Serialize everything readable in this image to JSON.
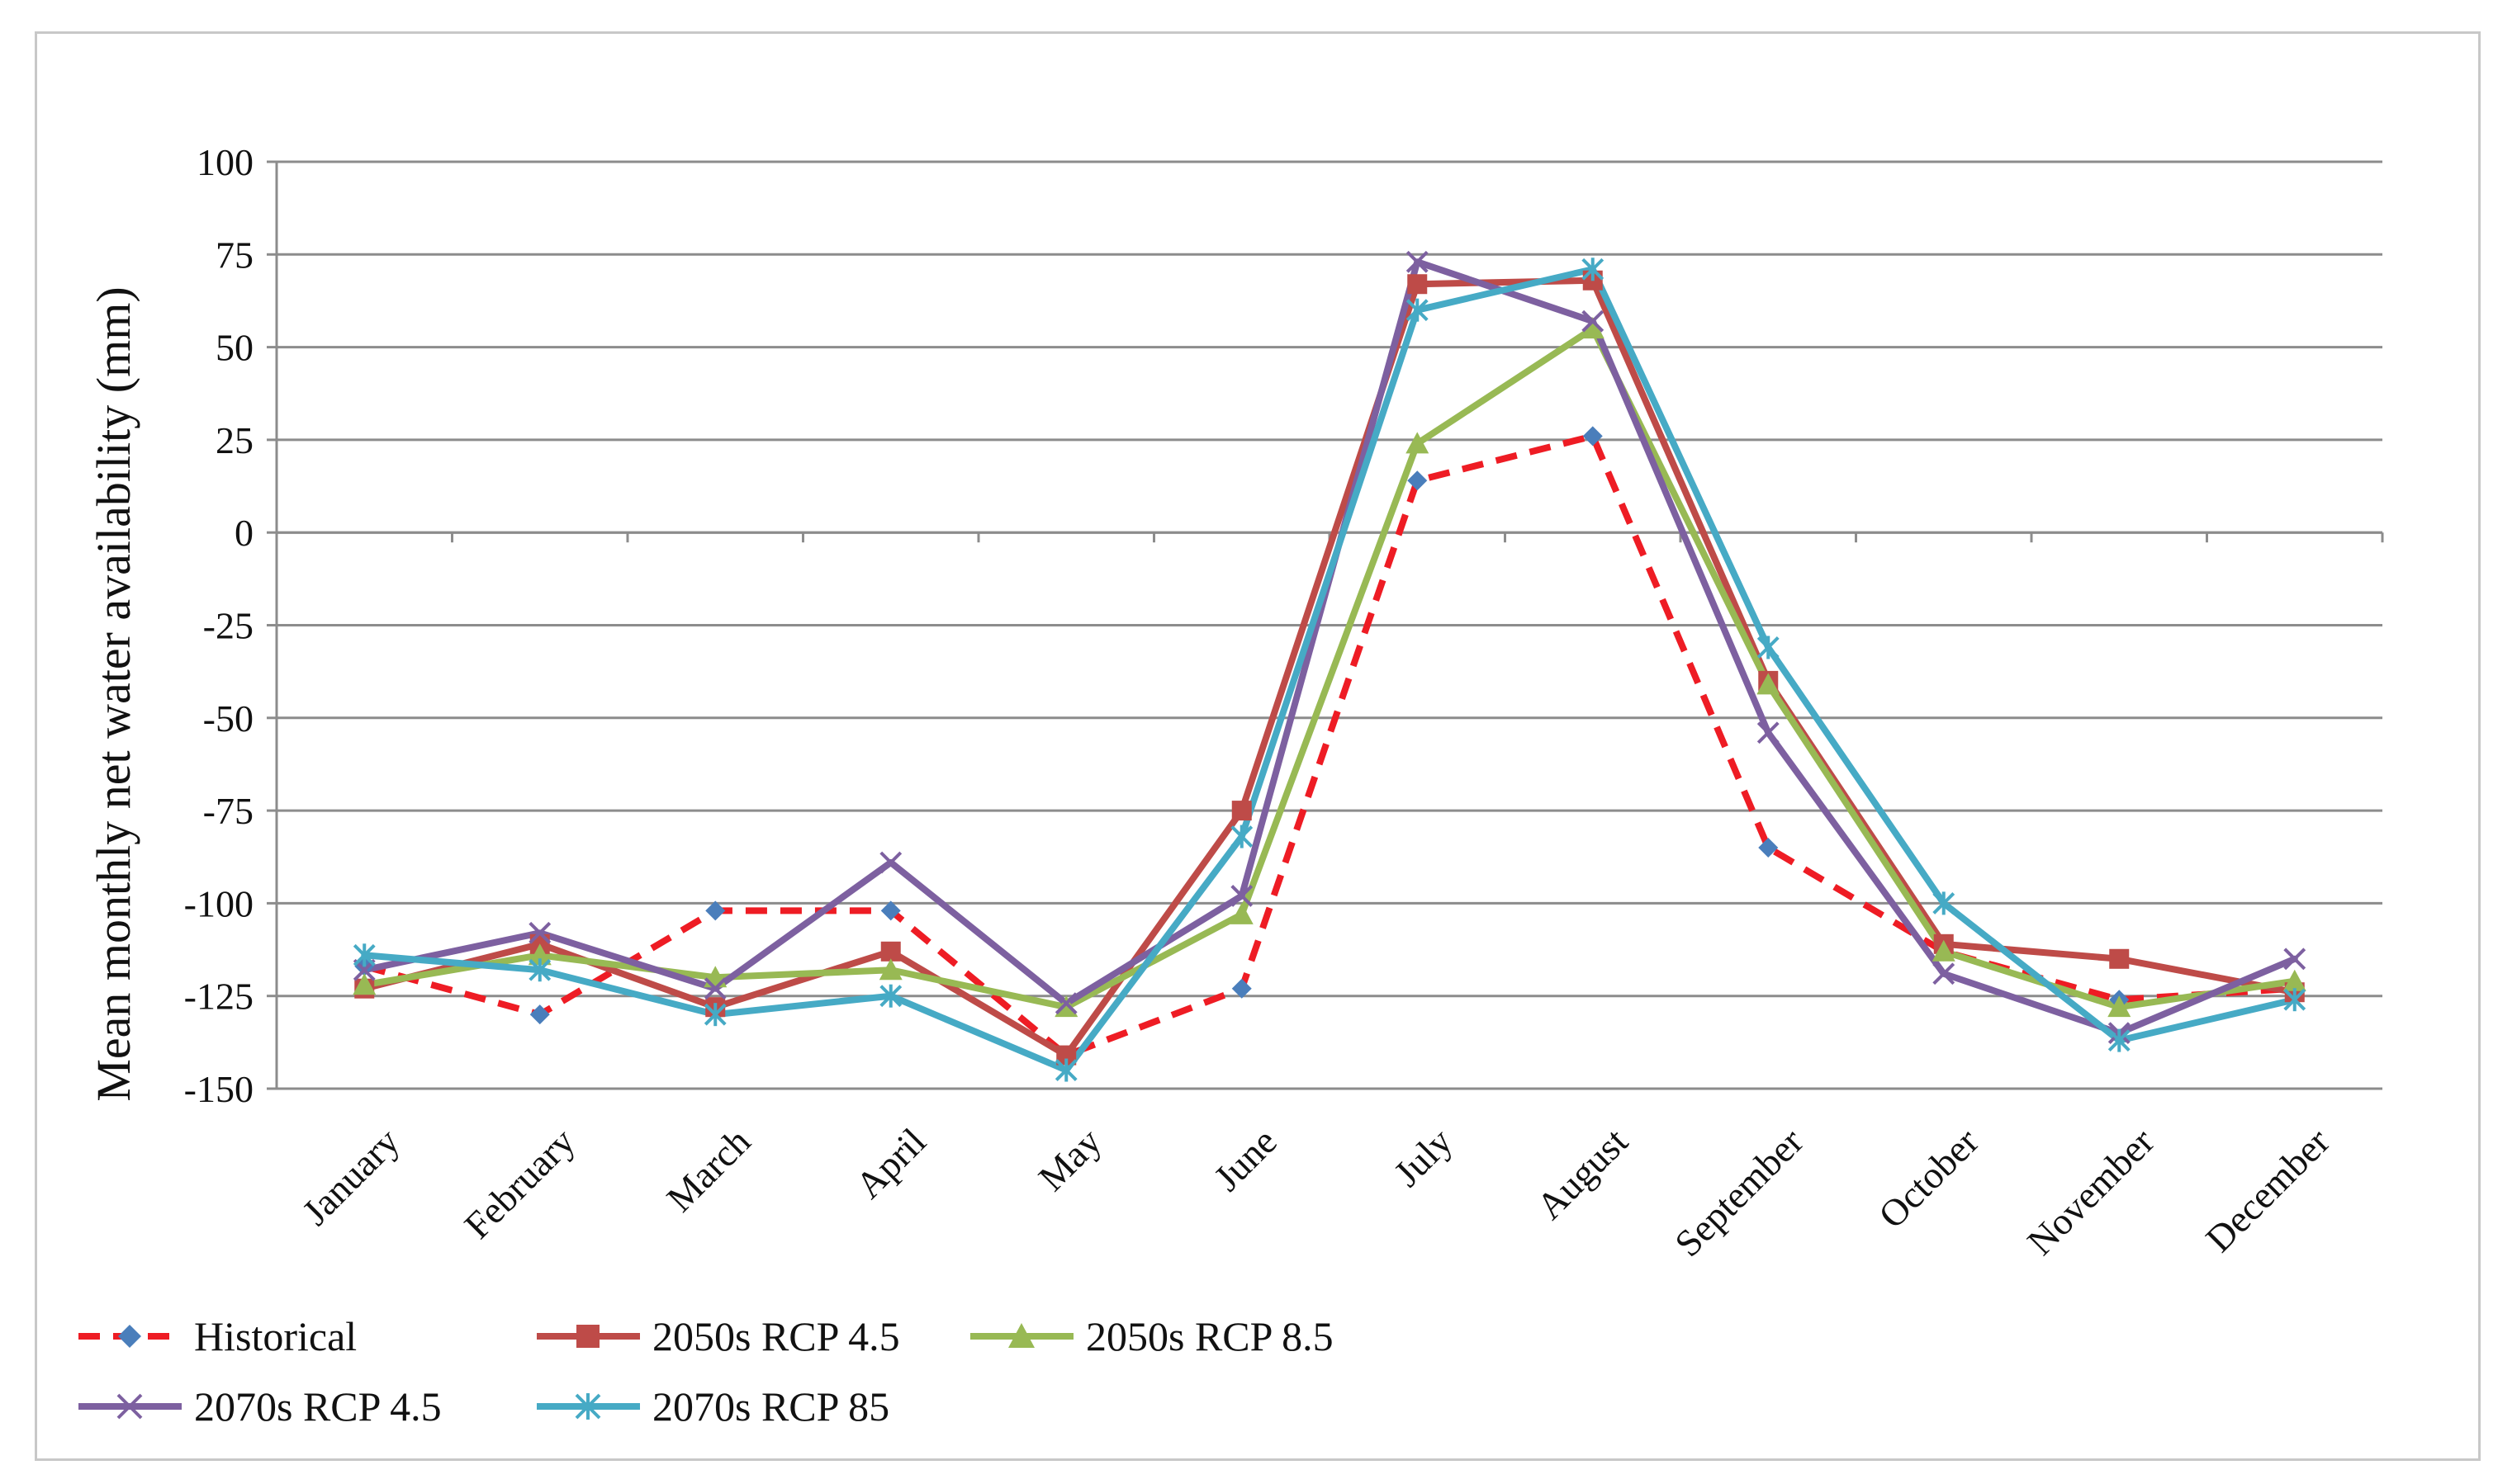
{
  "chart_data": {
    "type": "line",
    "title": "",
    "xlabel": "",
    "ylabel": "Mean monthly net water availability  (mm)",
    "ylim": [
      -150,
      100
    ],
    "yticks": [
      100,
      75,
      50,
      25,
      0,
      -25,
      -50,
      -75,
      -100,
      -125,
      -150
    ],
    "ytick_labels": [
      "100",
      "75",
      "50",
      "25",
      "0",
      "-25",
      "-50",
      "-75",
      "-100",
      "-125",
      "-150"
    ],
    "grid": true,
    "legend_position": "bottom",
    "categories": [
      "January",
      "February",
      "March",
      "April",
      "May",
      "June",
      "July",
      "August",
      "September",
      "October",
      "November",
      "December"
    ],
    "series": [
      {
        "name": "Historical",
        "color": "#ee1c24",
        "dash": "dashed",
        "marker": "diamond",
        "marker_color": "#4a7ebb",
        "values": [
          -117,
          -130,
          -102,
          -102,
          -141,
          -123,
          14,
          26,
          -85,
          -113,
          -126,
          -123
        ]
      },
      {
        "name": "2050s RCP 4.5",
        "color": "#be4b48",
        "dash": "solid",
        "marker": "square",
        "marker_color": "#be4b48",
        "values": [
          -123,
          -111,
          -128,
          -113,
          -141,
          -75,
          67,
          68,
          -40,
          -111,
          -115,
          -124
        ]
      },
      {
        "name": "2050s RCP 8.5",
        "color": "#98b954",
        "dash": "solid",
        "marker": "triangle",
        "marker_color": "#98b954",
        "values": [
          -122,
          -114,
          -120,
          -118,
          -128,
          -103,
          24,
          55,
          -41,
          -113,
          -128,
          -121
        ]
      },
      {
        "name": "2070s RCP 4.5",
        "color": "#7d60a0",
        "dash": "solid",
        "marker": "x",
        "marker_color": "#7d60a0",
        "values": [
          -118,
          -108,
          -123,
          -89,
          -127,
          -98,
          73,
          57,
          -54,
          -119,
          -135,
          -115
        ]
      },
      {
        "name": "2070s RCP 85",
        "color": "#46aac5",
        "dash": "solid",
        "marker": "star",
        "marker_color": "#46aac5",
        "values": [
          -114,
          -118,
          -130,
          -125,
          -145,
          -82,
          60,
          71,
          -31,
          -100,
          -137,
          -126
        ]
      }
    ]
  }
}
